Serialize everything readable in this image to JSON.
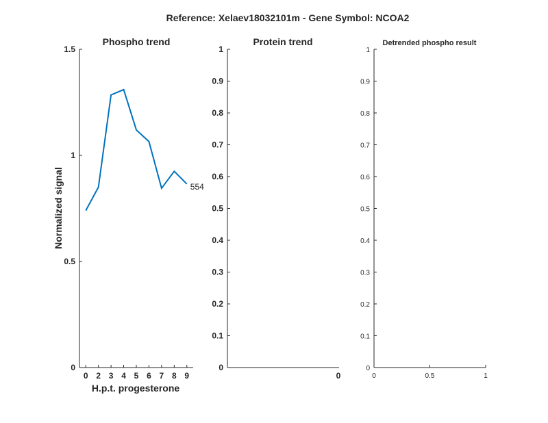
{
  "figure": {
    "title": "Reference:  Xelaev18032101m - Gene Symbol:  NCOA2"
  },
  "chart_data": [
    {
      "type": "line",
      "title": "Phospho trend",
      "xlabel": "H.p.t. progesterone",
      "ylabel": "Normalized signal",
      "categories": [
        "0",
        "2",
        "3",
        "4",
        "5",
        "6",
        "7",
        "8",
        "9"
      ],
      "xlim": [
        -0.5,
        8.5
      ],
      "ylim": [
        0,
        1.5
      ],
      "yticks": [
        0,
        0.5,
        1,
        1.5
      ],
      "yticklabels": [
        "0",
        "0.5",
        "1",
        "1.5"
      ],
      "series": [
        {
          "name": "554",
          "color": "#0072BD",
          "values": [
            0.74,
            0.85,
            1.285,
            1.31,
            1.12,
            1.065,
            0.845,
            0.925,
            0.865
          ]
        }
      ],
      "grid": false
    },
    {
      "type": "line",
      "title": "Protein trend",
      "xlabel": "",
      "ylabel": "",
      "ylim": [
        0,
        1
      ],
      "yticks": [
        0,
        0.1,
        0.2,
        0.3,
        0.4,
        0.5,
        0.6,
        0.7,
        0.8,
        0.9,
        1
      ],
      "yticklabels": [
        "0",
        "0.1",
        "0.2",
        "0.3",
        "0.4",
        "0.5",
        "0.6",
        "0.7",
        "0.8",
        "0.9",
        "1"
      ],
      "xticklabels": [
        "0"
      ],
      "series": [],
      "grid": false
    },
    {
      "type": "line",
      "title": "Detrended phospho result",
      "xlabel": "",
      "ylabel": "",
      "xlim": [
        0,
        1
      ],
      "ylim": [
        0,
        1
      ],
      "xticks": [
        0,
        0.5,
        1
      ],
      "xticklabels": [
        "0",
        "0.5",
        "1"
      ],
      "yticks": [
        0,
        0.1,
        0.2,
        0.3,
        0.4,
        0.5,
        0.6,
        0.7,
        0.8,
        0.9,
        1
      ],
      "yticklabels": [
        "0",
        "0.1",
        "0.2",
        "0.3",
        "0.4",
        "0.5",
        "0.6",
        "0.7",
        "0.8",
        "0.9",
        "1"
      ],
      "series": [],
      "grid": false
    }
  ]
}
